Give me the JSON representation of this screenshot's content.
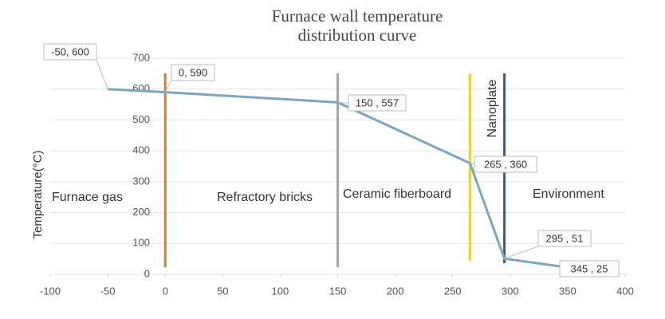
{
  "chart_data": {
    "type": "line",
    "title": [
      "Furnace wall temperature",
      "distribution curve"
    ],
    "y_label": "Temperature(°C)",
    "x": [
      -50,
      0,
      150,
      265,
      295,
      345
    ],
    "series": [
      {
        "color": "#7aa6c2",
        "values": [
          600,
          590,
          557,
          360,
          51,
          25
        ],
        "value_labels": [
          "-50, 600",
          "0, 590",
          "150 , 557",
          "265 , 360",
          "295 , 51",
          "345 , 25"
        ]
      }
    ],
    "boundaries": [
      {
        "x": 0,
        "color": "#c0834a"
      },
      {
        "x": 150,
        "color": "#a6a6a6"
      },
      {
        "x": 265,
        "color": "#e8d52a"
      },
      {
        "x": 295,
        "color": "#3d5a80"
      }
    ],
    "regions": [
      "Furnace gas",
      "Refractory bricks",
      "Ceramic fiberboard",
      "Nanoplate",
      "Environment"
    ],
    "xlim": [
      -100,
      400
    ],
    "xticks": [
      -100,
      -50,
      0,
      50,
      100,
      150,
      200,
      250,
      300,
      350,
      400
    ],
    "ylim": [
      0,
      700
    ],
    "yticks": [
      0,
      100,
      200,
      300,
      400,
      500,
      600,
      700
    ],
    "grid": true
  }
}
